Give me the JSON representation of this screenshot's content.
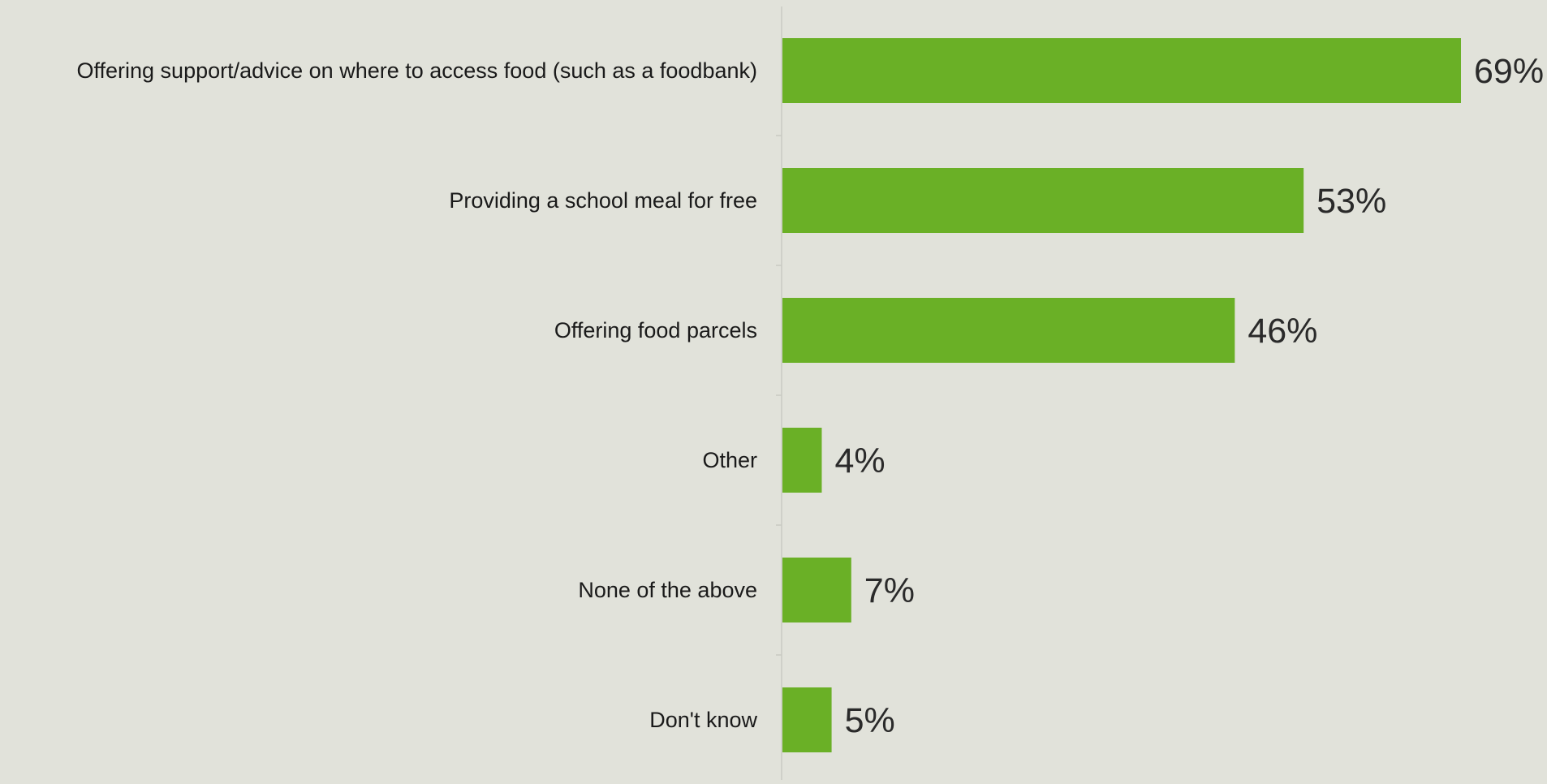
{
  "chart_data": {
    "type": "bar",
    "orientation": "horizontal",
    "categories": [
      "Offering support/advice on where to access food (such as a foodbank)",
      "Providing a school meal for free",
      "Offering food parcels",
      "Other",
      "None of the above",
      "Don't know"
    ],
    "values": [
      69,
      53,
      46,
      4,
      7,
      5
    ],
    "value_labels": [
      "69%",
      "53%",
      "46%",
      "4%",
      "7%",
      "5%"
    ],
    "unit": "%",
    "xlim": [
      0,
      69
    ],
    "grid": false,
    "legend": "none",
    "bar_color": "#6ab026",
    "background_color": "#e1e2da",
    "axis_color": "#c9cac3"
  }
}
